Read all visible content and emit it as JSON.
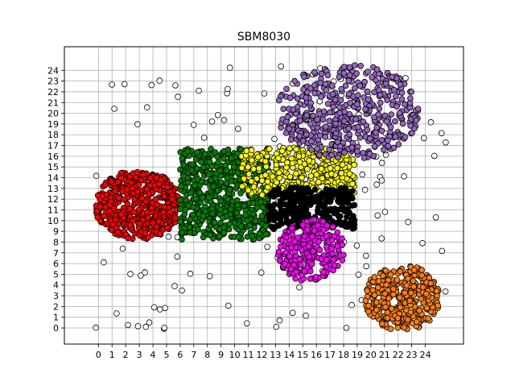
{
  "chart_data": {
    "type": "scatter",
    "title": "SBM8030",
    "xlabel": "",
    "ylabel": "",
    "xlim": [
      -2.5,
      26.8
    ],
    "ylim": [
      -1.5,
      26.2
    ],
    "grid": true,
    "x_ticks": [
      0,
      1,
      2,
      3,
      4,
      5,
      6,
      7,
      8,
      9,
      10,
      11,
      12,
      13,
      14,
      15,
      16,
      17,
      18,
      19,
      20,
      21,
      22,
      23,
      24
    ],
    "y_ticks": [
      0,
      1,
      2,
      3,
      4,
      5,
      6,
      7,
      8,
      9,
      10,
      11,
      12,
      13,
      14,
      15,
      16,
      17,
      18,
      19,
      20,
      21,
      22,
      23,
      24
    ],
    "colors": {
      "outline": "#000000",
      "grid": "#b0b0b0",
      "red": "#ff0000",
      "green": "#008000",
      "yellow": "#ffff00",
      "black": "#000000",
      "magenta": "#ff00ff",
      "purple": "#9467bd",
      "orange": "#ff7f0e",
      "white": "#ffffff"
    },
    "clusters": [
      {
        "color": "red",
        "region": {
          "x_range": [
            -0.2,
            6.0
          ],
          "y_range": [
            8.3,
            14.6
          ]
        },
        "approx_points": 520
      },
      {
        "color": "green",
        "region": {
          "x_range": [
            6.0,
            12.5
          ],
          "y_range": [
            8.2,
            16.7
          ]
        },
        "approx_points": 600
      },
      {
        "color": "yellow",
        "region": {
          "x_range": [
            10.5,
            18.8
          ],
          "y_range": [
            12.3,
            16.8
          ]
        },
        "approx_points": 380
      },
      {
        "color": "black",
        "region": {
          "x_range": [
            12.5,
            18.8
          ],
          "y_range": [
            9.2,
            13.1
          ]
        },
        "approx_points": 300
      },
      {
        "color": "magenta",
        "region": {
          "x_range": [
            13.2,
            18.0
          ],
          "y_range": [
            4.3,
            10.1
          ]
        },
        "approx_points": 260
      },
      {
        "color": "purple",
        "region": {
          "x_range": [
            13.2,
            23.5
          ],
          "y_range": [
            15.8,
            24.5
          ]
        },
        "approx_points": 480
      },
      {
        "color": "orange",
        "region": {
          "x_range": [
            19.6,
            25.0
          ],
          "y_range": [
            -0.2,
            5.8
          ]
        },
        "approx_points": 340
      },
      {
        "color": "white",
        "region": {
          "x_range": [
            -0.2,
            25.5
          ],
          "y_range": [
            -0.2,
            24.5
          ]
        },
        "approx_points": 160,
        "note": "unassigned outliers scattered around cluster edges"
      }
    ]
  }
}
